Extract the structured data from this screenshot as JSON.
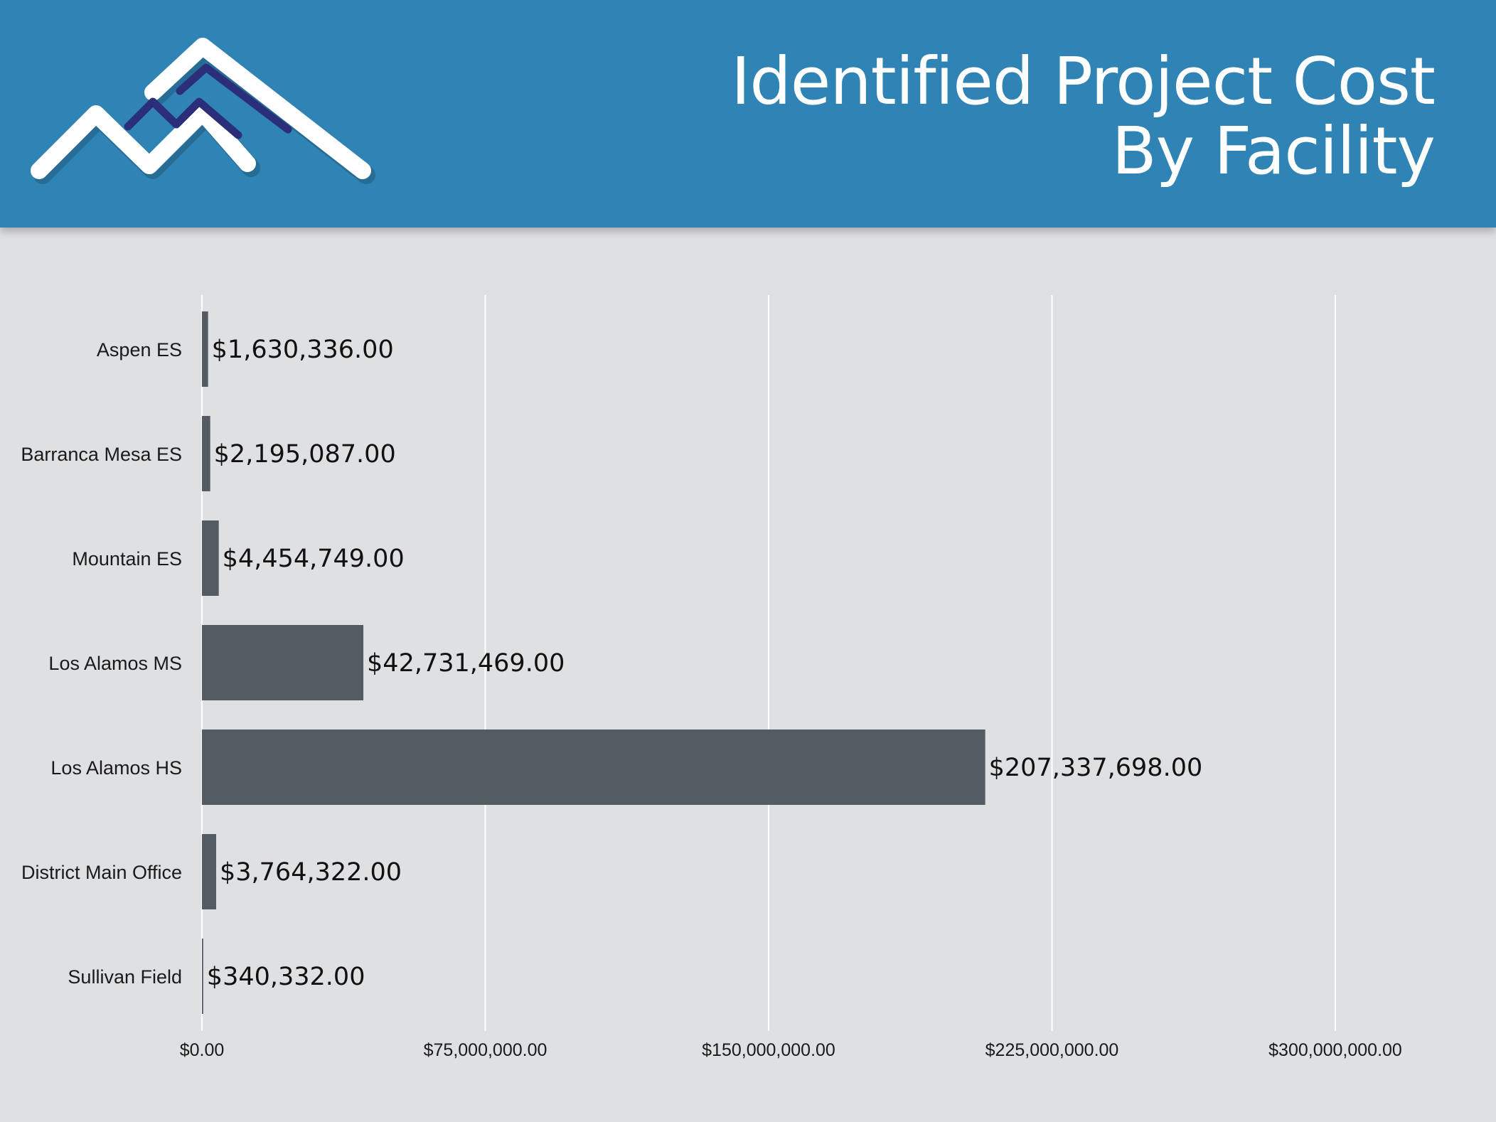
{
  "header": {
    "title_line1": "Identified Project Cost",
    "title_line2": "By Facility",
    "background_color": "#2f84b5"
  },
  "logo": {
    "icon": "mountain-logo-icon",
    "primary_color": "#ffffff",
    "accent_color": "#2b2f7a"
  },
  "chart_data": {
    "type": "bar",
    "orientation": "horizontal",
    "categories": [
      "Aspen ES",
      "Barranca Mesa ES",
      "Mountain ES",
      "Los Alamos MS",
      "Los Alamos HS",
      "District Main Office",
      "Sullivan Field"
    ],
    "values": [
      1630336,
      2195087,
      4454749,
      42731469,
      207337698,
      3764322,
      340332
    ],
    "data_labels": [
      "$1,630,336.00",
      "$2,195,087.00",
      "$4,454,749.00",
      "$42,731,469.00",
      "$207,337,698.00",
      "$3,764,322.00",
      "$340,332.00"
    ],
    "x_ticks": [
      0,
      75000000,
      150000000,
      225000000,
      300000000
    ],
    "x_tick_labels": [
      "$0.00",
      "$75,000,000.00",
      "$150,000,000.00",
      "$225,000,000.00",
      "$300,000,000.00"
    ],
    "xlim": [
      0,
      300000000
    ],
    "grid": "vertical",
    "legend": "none",
    "bar_color": "#535b63",
    "grid_color": "#ffffff"
  }
}
